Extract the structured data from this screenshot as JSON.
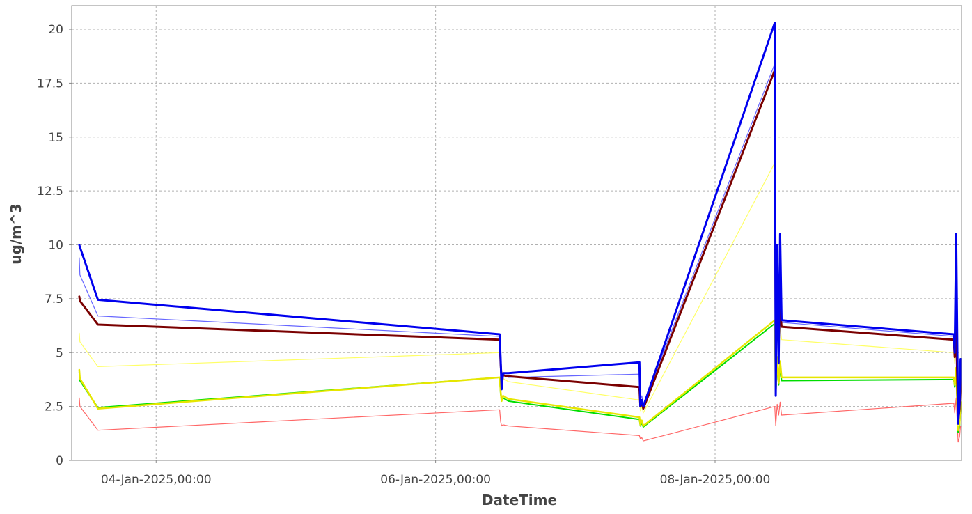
{
  "chart_data": {
    "type": "line",
    "title": "",
    "xlabel": "DateTime",
    "ylabel": "ug/m^3",
    "x_range": [
      "2025-01-03T09:30",
      "2025-01-09T18:20"
    ],
    "ylim": [
      0,
      21.1
    ],
    "grid": true,
    "legend": "none",
    "y_ticks": [
      {
        "value": 0,
        "label": "0"
      },
      {
        "value": 2.5,
        "label": "2.5"
      },
      {
        "value": 5,
        "label": "5"
      },
      {
        "value": 7.5,
        "label": "7.5"
      },
      {
        "value": 10,
        "label": "10"
      },
      {
        "value": 12.5,
        "label": "12.5"
      },
      {
        "value": 15,
        "label": "15"
      },
      {
        "value": 17.5,
        "label": "17.5"
      },
      {
        "value": 20,
        "label": "20"
      }
    ],
    "x_ticks": [
      {
        "value": "2025-01-04T00:00",
        "label": "04-Jan-2025,00:00"
      },
      {
        "value": "2025-01-06T00:00",
        "label": "06-Jan-2025,00:00"
      },
      {
        "value": "2025-01-08T00:00",
        "label": "08-Jan-2025,00:00"
      }
    ],
    "series": [
      {
        "color": "#ff6666",
        "width": 1.2,
        "points": [
          [
            "2025-01-03T10:48",
            2.9
          ],
          [
            "2025-01-03T10:55",
            2.5
          ],
          [
            "2025-01-03T14:00",
            1.4
          ],
          [
            "2025-01-06T11:00",
            2.35
          ],
          [
            "2025-01-06T11:10",
            1.8
          ],
          [
            "2025-01-06T11:20",
            1.6
          ],
          [
            "2025-01-06T11:35",
            1.65
          ],
          [
            "2025-01-06T12:30",
            1.6
          ],
          [
            "2025-01-07T11:00",
            1.15
          ],
          [
            "2025-01-07T11:10",
            1.0
          ],
          [
            "2025-01-07T11:25",
            1.05
          ],
          [
            "2025-01-07T11:40",
            0.9
          ],
          [
            "2025-01-08T10:15",
            2.5
          ],
          [
            "2025-01-08T10:25",
            1.6
          ],
          [
            "2025-01-08T10:40",
            2.6
          ],
          [
            "2025-01-08T10:55",
            2.1
          ],
          [
            "2025-01-08T11:10",
            2.7
          ],
          [
            "2025-01-08T11:25",
            2.1
          ],
          [
            "2025-01-09T17:00",
            2.65
          ],
          [
            "2025-01-09T17:10",
            2.2
          ],
          [
            "2025-01-09T17:25",
            2.9
          ],
          [
            "2025-01-09T17:45",
            0.85
          ],
          [
            "2025-01-09T18:00",
            1.1
          ],
          [
            "2025-01-09T18:10",
            1.6
          ]
        ]
      },
      {
        "color": "#00dd00",
        "width": 2,
        "points": [
          [
            "2025-01-03T10:48",
            4.1
          ],
          [
            "2025-01-03T10:55",
            3.7
          ],
          [
            "2025-01-03T14:00",
            2.45
          ],
          [
            "2025-01-06T11:00",
            3.85
          ],
          [
            "2025-01-06T11:10",
            3.1
          ],
          [
            "2025-01-06T11:20",
            2.8
          ],
          [
            "2025-01-06T11:35",
            2.9
          ],
          [
            "2025-01-06T12:30",
            2.75
          ],
          [
            "2025-01-07T11:00",
            1.9
          ],
          [
            "2025-01-07T11:10",
            1.6
          ],
          [
            "2025-01-07T11:25",
            1.75
          ],
          [
            "2025-01-07T11:40",
            1.55
          ],
          [
            "2025-01-08T10:15",
            6.35
          ],
          [
            "2025-01-08T10:25",
            3.0
          ],
          [
            "2025-01-08T10:40",
            4.5
          ],
          [
            "2025-01-08T10:55",
            3.5
          ],
          [
            "2025-01-08T11:10",
            4.3
          ],
          [
            "2025-01-08T11:25",
            3.7
          ],
          [
            "2025-01-09T17:00",
            3.75
          ],
          [
            "2025-01-09T17:10",
            3.4
          ],
          [
            "2025-01-09T17:25",
            4.1
          ],
          [
            "2025-01-09T17:45",
            1.3
          ],
          [
            "2025-01-09T18:00",
            1.6
          ],
          [
            "2025-01-09T18:10",
            2.5
          ]
        ]
      },
      {
        "color": "#e6e600",
        "width": 2.5,
        "points": [
          [
            "2025-01-03T10:48",
            4.2
          ],
          [
            "2025-01-03T10:55",
            3.8
          ],
          [
            "2025-01-03T14:00",
            2.4
          ],
          [
            "2025-01-06T11:00",
            3.85
          ],
          [
            "2025-01-06T11:10",
            3.2
          ],
          [
            "2025-01-06T11:20",
            2.75
          ],
          [
            "2025-01-06T11:35",
            3.0
          ],
          [
            "2025-01-06T12:30",
            2.85
          ],
          [
            "2025-01-07T11:00",
            2.0
          ],
          [
            "2025-01-07T11:10",
            1.65
          ],
          [
            "2025-01-07T11:25",
            1.85
          ],
          [
            "2025-01-07T11:40",
            1.6
          ],
          [
            "2025-01-08T10:15",
            6.5
          ],
          [
            "2025-01-08T10:25",
            3.1
          ],
          [
            "2025-01-08T10:40",
            4.8
          ],
          [
            "2025-01-08T10:55",
            3.6
          ],
          [
            "2025-01-08T11:10",
            4.6
          ],
          [
            "2025-01-08T11:25",
            3.85
          ],
          [
            "2025-01-09T17:00",
            3.85
          ],
          [
            "2025-01-09T17:10",
            3.5
          ],
          [
            "2025-01-09T17:25",
            4.3
          ],
          [
            "2025-01-09T17:45",
            1.4
          ],
          [
            "2025-01-09T18:00",
            1.7
          ],
          [
            "2025-01-09T18:10",
            2.7
          ]
        ]
      },
      {
        "color": "#ffff66",
        "width": 1.2,
        "points": [
          [
            "2025-01-03T10:48",
            5.9
          ],
          [
            "2025-01-03T10:55",
            5.5
          ],
          [
            "2025-01-03T14:00",
            4.35
          ],
          [
            "2025-01-06T11:00",
            5.0
          ],
          [
            "2025-01-06T11:10",
            4.3
          ],
          [
            "2025-01-06T11:20",
            3.7
          ],
          [
            "2025-01-06T11:35",
            3.8
          ],
          [
            "2025-01-06T12:30",
            3.65
          ],
          [
            "2025-01-07T11:00",
            2.8
          ],
          [
            "2025-01-07T11:10",
            2.3
          ],
          [
            "2025-01-07T11:25",
            2.5
          ],
          [
            "2025-01-07T11:40",
            2.2
          ],
          [
            "2025-01-08T10:15",
            13.8
          ],
          [
            "2025-01-08T10:25",
            4.3
          ],
          [
            "2025-01-08T10:40",
            6.6
          ],
          [
            "2025-01-08T10:55",
            4.8
          ],
          [
            "2025-01-08T11:10",
            6.2
          ],
          [
            "2025-01-08T11:25",
            5.6
          ],
          [
            "2025-01-09T17:00",
            5.0
          ],
          [
            "2025-01-09T17:10",
            4.5
          ],
          [
            "2025-01-09T17:25",
            5.5
          ],
          [
            "2025-01-09T17:45",
            1.6
          ],
          [
            "2025-01-09T18:00",
            2.0
          ],
          [
            "2025-01-09T18:10",
            3.2
          ]
        ]
      },
      {
        "color": "#6666ff",
        "width": 1.2,
        "points": [
          [
            "2025-01-03T10:48",
            9.4
          ],
          [
            "2025-01-03T10:55",
            8.6
          ],
          [
            "2025-01-03T14:00",
            6.7
          ],
          [
            "2025-01-06T11:00",
            5.75
          ],
          [
            "2025-01-06T11:10",
            4.6
          ],
          [
            "2025-01-06T11:20",
            3.9
          ],
          [
            "2025-01-06T11:35",
            4.0
          ],
          [
            "2025-01-06T12:30",
            3.85
          ],
          [
            "2025-01-07T11:00",
            4.0
          ],
          [
            "2025-01-07T11:10",
            2.8
          ],
          [
            "2025-01-07T11:25",
            3.0
          ],
          [
            "2025-01-07T11:40",
            2.6
          ],
          [
            "2025-01-08T10:15",
            18.4
          ],
          [
            "2025-01-08T10:25",
            5.5
          ],
          [
            "2025-01-08T10:40",
            9.5
          ],
          [
            "2025-01-08T10:55",
            6.0
          ],
          [
            "2025-01-08T11:10",
            9.5
          ],
          [
            "2025-01-08T11:25",
            6.4
          ],
          [
            "2025-01-09T17:00",
            5.75
          ],
          [
            "2025-01-09T17:10",
            5.0
          ],
          [
            "2025-01-09T17:25",
            9.8
          ],
          [
            "2025-01-09T17:45",
            1.8
          ],
          [
            "2025-01-09T18:00",
            2.5
          ],
          [
            "2025-01-09T18:10",
            4.5
          ]
        ]
      },
      {
        "color": "#7a0000",
        "width": 3,
        "points": [
          [
            "2025-01-03T10:48",
            7.6
          ],
          [
            "2025-01-03T10:55",
            7.4
          ],
          [
            "2025-01-03T14:00",
            6.3
          ],
          [
            "2025-01-06T11:00",
            5.6
          ],
          [
            "2025-01-06T11:10",
            4.5
          ],
          [
            "2025-01-06T11:20",
            3.8
          ],
          [
            "2025-01-06T11:35",
            3.95
          ],
          [
            "2025-01-06T12:30",
            3.9
          ],
          [
            "2025-01-07T11:00",
            3.4
          ],
          [
            "2025-01-07T11:10",
            2.5
          ],
          [
            "2025-01-07T11:25",
            2.7
          ],
          [
            "2025-01-07T11:40",
            2.4
          ],
          [
            "2025-01-08T10:15",
            18.1
          ],
          [
            "2025-01-08T10:25",
            5.0
          ],
          [
            "2025-01-08T10:40",
            7.4
          ],
          [
            "2025-01-08T10:55",
            5.5
          ],
          [
            "2025-01-08T11:10",
            7.0
          ],
          [
            "2025-01-08T11:25",
            6.2
          ],
          [
            "2025-01-09T17:00",
            5.6
          ],
          [
            "2025-01-09T17:10",
            4.8
          ],
          [
            "2025-01-09T17:25",
            6.2
          ],
          [
            "2025-01-09T17:45",
            1.8
          ],
          [
            "2025-01-09T18:00",
            2.4
          ],
          [
            "2025-01-09T18:10",
            3.8
          ]
        ]
      },
      {
        "color": "#0000ee",
        "width": 3,
        "points": [
          [
            "2025-01-03T10:48",
            10.0
          ],
          [
            "2025-01-03T10:55",
            9.9
          ],
          [
            "2025-01-03T14:00",
            7.45
          ],
          [
            "2025-01-06T11:00",
            5.85
          ],
          [
            "2025-01-06T11:10",
            4.7
          ],
          [
            "2025-01-06T11:20",
            3.3
          ],
          [
            "2025-01-06T11:35",
            4.05
          ],
          [
            "2025-01-06T12:30",
            4.05
          ],
          [
            "2025-01-07T11:00",
            4.55
          ],
          [
            "2025-01-07T11:10",
            2.5
          ],
          [
            "2025-01-07T11:25",
            2.8
          ],
          [
            "2025-01-07T11:40",
            2.5
          ],
          [
            "2025-01-08T10:15",
            20.3
          ],
          [
            "2025-01-08T10:25",
            3.0
          ],
          [
            "2025-01-08T10:40",
            10.0
          ],
          [
            "2025-01-08T10:55",
            4.5
          ],
          [
            "2025-01-08T11:10",
            10.5
          ],
          [
            "2025-01-08T11:25",
            6.5
          ],
          [
            "2025-01-09T17:00",
            5.85
          ],
          [
            "2025-01-09T17:10",
            5.0
          ],
          [
            "2025-01-09T17:25",
            10.5
          ],
          [
            "2025-01-09T17:45",
            1.7
          ],
          [
            "2025-01-09T18:00",
            2.6
          ],
          [
            "2025-01-09T18:10",
            4.7
          ]
        ]
      }
    ]
  }
}
